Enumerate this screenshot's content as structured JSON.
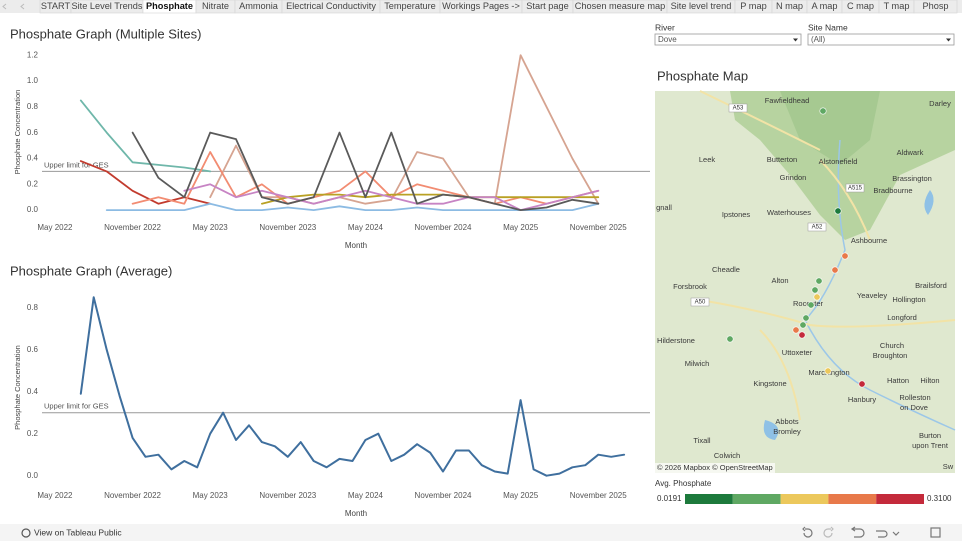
{
  "tabs": [
    "START",
    "Site Level Trends",
    "Phosphate",
    "Nitrate",
    "Ammonia",
    "Electrical Conductivity",
    "Temperature",
    "Workings Pages ->",
    "Start page",
    "Chosen measure map",
    "Site level trend",
    "P map",
    "N map",
    "A map",
    "C map",
    "T map",
    "Phosp"
  ],
  "active_tab": 2,
  "filters": [
    {
      "label": "River",
      "value": "Dove"
    },
    {
      "label": "Site Name",
      "value": "(All)"
    }
  ],
  "map": {
    "title": "Phosphate Map",
    "places": [
      "Fawfieldhead",
      "Darley",
      "Leek",
      "Butterton",
      "Alstonefield",
      "Aldwark",
      "Grindon",
      "Brassington",
      "Bradbourne",
      "Waterhouses",
      "Ipstones",
      "gnall",
      "Ashbourne",
      "Cheadle",
      "Alton",
      "Yeaveley",
      "Brailsford",
      "Forsbrook",
      "Rocester",
      "Hollington",
      "Longford",
      "Hilderstone",
      "Milwich",
      "Uttoxeter",
      "Church",
      "Broughton",
      "Marchington",
      "Kingstone",
      "Hatton",
      "Hilton",
      "Hanbury",
      "Rolleston",
      "on Dove",
      "Abbots",
      "Bromley",
      "Tixall",
      "Colwich",
      "Burton",
      "upon Trent",
      "Sw"
    ],
    "roads": [
      "A53",
      "A515",
      "A52",
      "A50"
    ],
    "attribution": "© 2026 Mapbox  © OpenStreetMap",
    "legend": {
      "title": "Avg. Phosphate",
      "min": 0.0191,
      "max": {
        "value": 0.31,
        "label": "0.3100"
      },
      "colors": [
        "#1d7a3c",
        "#5fa863",
        "#ecc85c",
        "#e8794a",
        "#c42a3b"
      ]
    }
  },
  "footer": "View on Tableau Public",
  "chart_data": [
    {
      "type": "line",
      "title": "Phosphate Graph (Multiple Sites)",
      "x_label": "Month",
      "y_label": "Phosphate Concentration",
      "x": [
        "2022-07",
        "2022-09",
        "2022-11",
        "2023-01",
        "2023-03",
        "2023-05",
        "2023-07",
        "2023-09",
        "2023-11",
        "2024-01",
        "2024-03",
        "2024-05",
        "2024-07",
        "2024-09",
        "2024-11",
        "2025-01",
        "2025-03",
        "2025-05",
        "2025-07",
        "2025-09",
        "2025-11"
      ],
      "series": [
        {
          "color": "#6fb7aa",
          "values": [
            0.85,
            0.6,
            0.37,
            0.35,
            0.33,
            0.3,
            null,
            null,
            null,
            null,
            null,
            null,
            null,
            null,
            null,
            null,
            null,
            null,
            null,
            null,
            null
          ]
        },
        {
          "color": "#d6a491",
          "values": [
            null,
            null,
            null,
            null,
            null,
            0.1,
            0.5,
            0.1,
            0.1,
            0.05,
            0.1,
            0.05,
            0.08,
            0.45,
            0.4,
            0.1,
            0.05,
            1.2,
            0.8,
            0.4,
            0.05
          ]
        },
        {
          "color": "#c23b2e",
          "values": [
            0.38,
            0.3,
            0.15,
            0.05,
            0.1,
            0.05,
            null,
            null,
            null,
            null,
            null,
            null,
            null,
            null,
            null,
            null,
            null,
            null,
            null,
            null,
            null
          ]
        },
        {
          "color": "#f28c72",
          "values": [
            null,
            null,
            0.05,
            0.1,
            0.05,
            0.45,
            0.1,
            0.2,
            0.05,
            0.1,
            0.15,
            0.3,
            0.1,
            0.2,
            0.15,
            0.1,
            0.05,
            0.1,
            0.05,
            0.1,
            0.15
          ]
        },
        {
          "color": "#8cbbe3",
          "values": [
            null,
            0,
            0,
            0,
            0,
            0.05,
            0,
            0,
            0.02,
            0,
            0.03,
            0,
            0,
            0.02,
            0,
            0,
            0,
            0,
            0,
            0,
            0.05
          ]
        },
        {
          "color": "#b9a124",
          "values": [
            null,
            null,
            null,
            null,
            null,
            null,
            null,
            0.05,
            0.1,
            0.12,
            0.12,
            0.1,
            0.12,
            0.12,
            0.12,
            0.1,
            0.1,
            0.1,
            0.1,
            0.1,
            0.1
          ]
        },
        {
          "color": "#c784c4",
          "values": [
            null,
            null,
            null,
            null,
            0.15,
            0.2,
            0.1,
            0.15,
            0.1,
            0.05,
            0.1,
            0.15,
            0.1,
            0.05,
            0.05,
            0.1,
            0.1,
            0,
            0.05,
            0.1,
            0.15
          ]
        },
        {
          "color": "#5a5a5a",
          "values": [
            null,
            null,
            0.6,
            0.25,
            0.1,
            0.6,
            0.55,
            0.1,
            0.05,
            0.1,
            0.6,
            0.1,
            0.6,
            0.05,
            0.12,
            0.1,
            0.05,
            0,
            0.02,
            0.08,
            0.05
          ]
        }
      ],
      "xlim": [
        "2022-04",
        "2026-03"
      ],
      "xticks": [
        {
          "value": "2022-05",
          "label": "May 2022"
        },
        {
          "value": "2022-11",
          "label": "November 2022"
        },
        {
          "value": "2023-05",
          "label": "May 2023"
        },
        {
          "value": "2023-11",
          "label": "November 2023"
        },
        {
          "value": "2024-05",
          "label": "May 2024"
        },
        {
          "value": "2024-11",
          "label": "November 2024"
        },
        {
          "value": "2025-05",
          "label": "May 2025"
        },
        {
          "value": "2025-11",
          "label": "November 2025"
        }
      ],
      "ylim": [
        -0.03,
        1.24
      ],
      "yticks": [
        {
          "value": 0,
          "label": "0.0"
        },
        0.2,
        0.4,
        0.6,
        0.8,
        {
          "value": 1,
          "label": "1.0"
        },
        1.2
      ],
      "reference_line": {
        "value": 0.3,
        "label": "Upper limit for GES"
      }
    },
    {
      "type": "line",
      "title": "Phosphate Graph (Average)",
      "x_label": "Month",
      "y_label": "Phosphate Concentration",
      "x": [
        "2022-07",
        "2022-08",
        "2022-09",
        "2022-10",
        "2022-11",
        "2022-12",
        "2023-01",
        "2023-02",
        "2023-03",
        "2023-04",
        "2023-05",
        "2023-06",
        "2023-07",
        "2023-08",
        "2023-09",
        "2023-10",
        "2023-11",
        "2023-12",
        "2024-01",
        "2024-02",
        "2024-03",
        "2024-04",
        "2024-05",
        "2024-06",
        "2024-07",
        "2024-08",
        "2024-09",
        "2024-10",
        "2024-11",
        "2024-12",
        "2025-01",
        "2025-02",
        "2025-03",
        "2025-04",
        "2025-05",
        "2025-06",
        "2025-07",
        "2025-08",
        "2025-09",
        "2025-10",
        "2025-11",
        "2025-12",
        "2026-01"
      ],
      "series": [
        {
          "color": "#3f6f9e",
          "values": [
            0.39,
            0.85,
            0.6,
            0.38,
            0.18,
            0.09,
            0.1,
            0.03,
            0.07,
            0.04,
            0.2,
            0.3,
            0.17,
            0.24,
            0.16,
            0.14,
            0.09,
            0.16,
            0.07,
            0.04,
            0.08,
            0.07,
            0.17,
            0.2,
            0.07,
            0.1,
            0.15,
            0.11,
            0.02,
            0.12,
            0.12,
            0.05,
            0.02,
            0.01,
            0.36,
            0.03,
            0,
            0.01,
            0.04,
            0.05,
            0.1,
            0.09,
            0.1
          ]
        }
      ],
      "xlim": [
        "2022-04",
        "2026-03"
      ],
      "xticks": [
        {
          "value": "2022-05",
          "label": "May 2022"
        },
        {
          "value": "2022-11",
          "label": "November 2022"
        },
        {
          "value": "2023-05",
          "label": "May 2023"
        },
        {
          "value": "2023-11",
          "label": "November 2023"
        },
        {
          "value": "2024-05",
          "label": "May 2024"
        },
        {
          "value": "2024-11",
          "label": "November 2024"
        },
        {
          "value": "2025-05",
          "label": "May 2025"
        },
        {
          "value": "2025-11",
          "label": "November 2025"
        }
      ],
      "ylim": [
        -0.03,
        0.87
      ],
      "yticks": [
        {
          "value": 0,
          "label": "0.0"
        },
        0.2,
        0.4,
        0.6,
        0.8
      ],
      "reference_line": {
        "value": 0.3,
        "label": "Upper limit for GES"
      }
    }
  ]
}
